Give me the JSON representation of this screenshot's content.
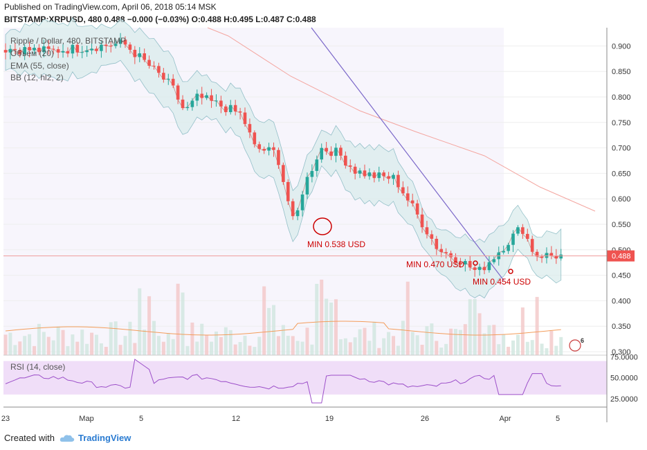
{
  "header": {
    "line1": "Published on TradingView.com, April 06, 2018 05:14 MSK",
    "line2": "BITSTAMP:XRPUSD, 480  0.488 −0.000 (−0.03%) O:0.488 H:0.495 L:0.487 C:0.488"
  },
  "legend": {
    "symbol": "Ripple / Dollar, 480, BITSTAMP",
    "volume": "Объем (20)",
    "ema": "EMA (55, close)",
    "bb": "BB (12, hl2, 2)",
    "rsi": "RSI (14, close)"
  },
  "footer": {
    "created_with": "Created with",
    "brand": "TradingView"
  },
  "colors": {
    "up": "#26a69a",
    "down": "#ef5350",
    "bb_fill": "#d9ecec",
    "ema": "#f4a6a0",
    "trendline": "#7b68c9",
    "annotation": "#cc0000",
    "rsi_band": "#f0def8",
    "price_label_bg": "#ef5350"
  },
  "chart_data": {
    "type": "candlestick",
    "y_ticks": [
      "0.900",
      "0.850",
      "0.800",
      "0.750",
      "0.700",
      "0.650",
      "0.600",
      "0.550",
      "0.500",
      "0.450",
      "0.400",
      "0.350",
      "0.300"
    ],
    "ylim": [
      0.3,
      0.92
    ],
    "x_ticks": [
      "23",
      "Map",
      "5",
      "12",
      "19",
      "26",
      "Apr",
      "5"
    ],
    "last_price": "0.488",
    "annotations": [
      "MIN 0.538 USD",
      "MIN 0.470 USD",
      "MIN 0.454 USD"
    ],
    "rsi": {
      "ticks": [
        "75.0000",
        "50.0000",
        "25.0000"
      ],
      "ylim": [
        15,
        77
      ],
      "band": [
        30,
        70
      ]
    }
  }
}
